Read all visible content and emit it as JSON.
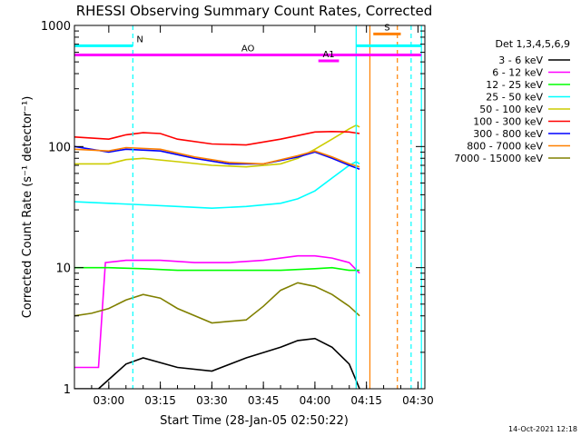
{
  "chart_data": {
    "type": "line",
    "title": "RHESSI Observing Summary Count Rates, Corrected",
    "xlabel": "Start Time (28-Jan-05 02:50:22)",
    "ylabel": "Corrected Count Rate (s⁻¹ detector⁻¹)",
    "y_scale": "log",
    "ylim": [
      1,
      1000
    ],
    "xlim": [
      "02:50",
      "04:32"
    ],
    "x_ticks": [
      "03:00",
      "03:15",
      "03:30",
      "03:45",
      "04:00",
      "04:15",
      "04:30"
    ],
    "y_ticks": [
      "1",
      "10",
      "100",
      "1000"
    ],
    "legend_title": "Det 1,3,4,5,6,9",
    "legend_position": "right",
    "footer": "14-Oct-2021 12:18",
    "series": [
      {
        "name": "3 - 6 keV",
        "color": "#000000",
        "x": [
          "02:50",
          "02:57",
          "03:05",
          "03:10",
          "03:20",
          "03:30",
          "03:40",
          "03:50",
          "03:55",
          "04:00",
          "04:05",
          "04:10",
          "04:13"
        ],
        "y": [
          1.0,
          1.0,
          1.6,
          1.8,
          1.5,
          1.4,
          1.8,
          2.2,
          2.5,
          2.6,
          2.2,
          1.6,
          1.0
        ]
      },
      {
        "name": "6 - 12 keV",
        "color": "#ff00ff",
        "x": [
          "02:50",
          "02:57",
          "02:59",
          "03:05",
          "03:15",
          "03:25",
          "03:35",
          "03:45",
          "03:55",
          "04:00",
          "04:05",
          "04:10",
          "04:13"
        ],
        "y": [
          1.5,
          1.5,
          11,
          11.5,
          11.5,
          11,
          11,
          11.5,
          12.5,
          12.5,
          12,
          11,
          9
        ]
      },
      {
        "name": "12 - 25 keV",
        "color": "#00ff00",
        "x": [
          "02:50",
          "03:00",
          "03:10",
          "03:20",
          "03:30",
          "03:40",
          "03:50",
          "04:00",
          "04:05",
          "04:10",
          "04:13"
        ],
        "y": [
          10,
          10,
          9.8,
          9.5,
          9.5,
          9.5,
          9.5,
          9.8,
          10,
          9.5,
          9.5
        ]
      },
      {
        "name": "25 - 50 keV",
        "color": "#00ffff",
        "x": [
          "02:50",
          "03:00",
          "03:10",
          "03:20",
          "03:30",
          "03:40",
          "03:50",
          "03:55",
          "04:00",
          "04:05",
          "04:10",
          "04:12",
          "04:13"
        ],
        "y": [
          35,
          34,
          33,
          32,
          31,
          32,
          34,
          37,
          43,
          55,
          70,
          75,
          72
        ]
      },
      {
        "name": "50 - 100 keV",
        "color": "#cccc00",
        "x": [
          "02:50",
          "03:00",
          "03:05",
          "03:10",
          "03:20",
          "03:30",
          "03:40",
          "03:50",
          "03:55",
          "04:00",
          "04:05",
          "04:10",
          "04:12",
          "04:13"
        ],
        "y": [
          72,
          72,
          78,
          80,
          75,
          70,
          68,
          72,
          80,
          95,
          115,
          140,
          150,
          145
        ]
      },
      {
        "name": "100 - 300 keV",
        "color": "#ff0000",
        "x": [
          "02:50",
          "03:00",
          "03:05",
          "03:10",
          "03:15",
          "03:20",
          "03:30",
          "03:40",
          "03:50",
          "04:00",
          "04:05",
          "04:10",
          "04:13"
        ],
        "y": [
          120,
          115,
          125,
          130,
          128,
          115,
          105,
          103,
          115,
          132,
          133,
          132,
          128
        ]
      },
      {
        "name": "300 - 800 keV",
        "color": "#0000ff",
        "x": [
          "02:50",
          "03:00",
          "03:05",
          "03:15",
          "03:25",
          "03:35",
          "03:45",
          "03:55",
          "04:00",
          "04:05",
          "04:10",
          "04:13"
        ],
        "y": [
          100,
          90,
          95,
          92,
          80,
          72,
          72,
          82,
          90,
          80,
          70,
          65
        ]
      },
      {
        "name": "800 - 7000 keV",
        "color": "#ff8000",
        "x": [
          "02:50",
          "03:00",
          "03:05",
          "03:15",
          "03:25",
          "03:35",
          "03:45",
          "03:55",
          "04:00",
          "04:05",
          "04:10",
          "04:13"
        ],
        "y": [
          95,
          92,
          98,
          95,
          82,
          74,
          72,
          84,
          92,
          82,
          72,
          68
        ]
      },
      {
        "name": "7000 - 15000 keV",
        "color": "#808000",
        "x": [
          "02:50",
          "02:55",
          "03:00",
          "03:05",
          "03:10",
          "03:15",
          "03:20",
          "03:30",
          "03:40",
          "03:45",
          "03:50",
          "03:55",
          "04:00",
          "04:05",
          "04:10",
          "04:13"
        ],
        "y": [
          4.0,
          4.2,
          4.6,
          5.4,
          6.0,
          5.6,
          4.6,
          3.5,
          3.7,
          4.8,
          6.5,
          7.5,
          7.0,
          6.0,
          4.8,
          4.0
        ]
      }
    ],
    "annotations": [
      {
        "label": "N",
        "color": "#00ffff",
        "x_start": "02:50",
        "x_end": "03:07",
        "y": 680
      },
      {
        "label": "AO",
        "color": "#ff00ff",
        "x_start": "02:50",
        "x_end": "04:31",
        "y": 570
      },
      {
        "label": "A1",
        "color": "#ff00ff",
        "x_start": "04:01",
        "x_end": "04:07",
        "y": 510
      },
      {
        "label": "S",
        "color": "#ff8000",
        "x_start": "04:17",
        "x_end": "04:25",
        "y": 850
      },
      {
        "label": "",
        "color": "#00ffff",
        "x_start": "04:12",
        "x_end": "04:31",
        "y": 680
      }
    ],
    "vertical_lines": [
      {
        "x": "03:07",
        "color": "#00ffff",
        "style": "dashed"
      },
      {
        "x": "04:12",
        "color": "#00ffff",
        "style": "solid"
      },
      {
        "x": "04:16",
        "color": "#ff8000",
        "style": "solid"
      },
      {
        "x": "04:24",
        "color": "#ff8000",
        "style": "dashed"
      },
      {
        "x": "04:28",
        "color": "#00ffff",
        "style": "dashed"
      },
      {
        "x": "04:31",
        "color": "#00ffff",
        "style": "solid"
      }
    ],
    "grid": false
  }
}
